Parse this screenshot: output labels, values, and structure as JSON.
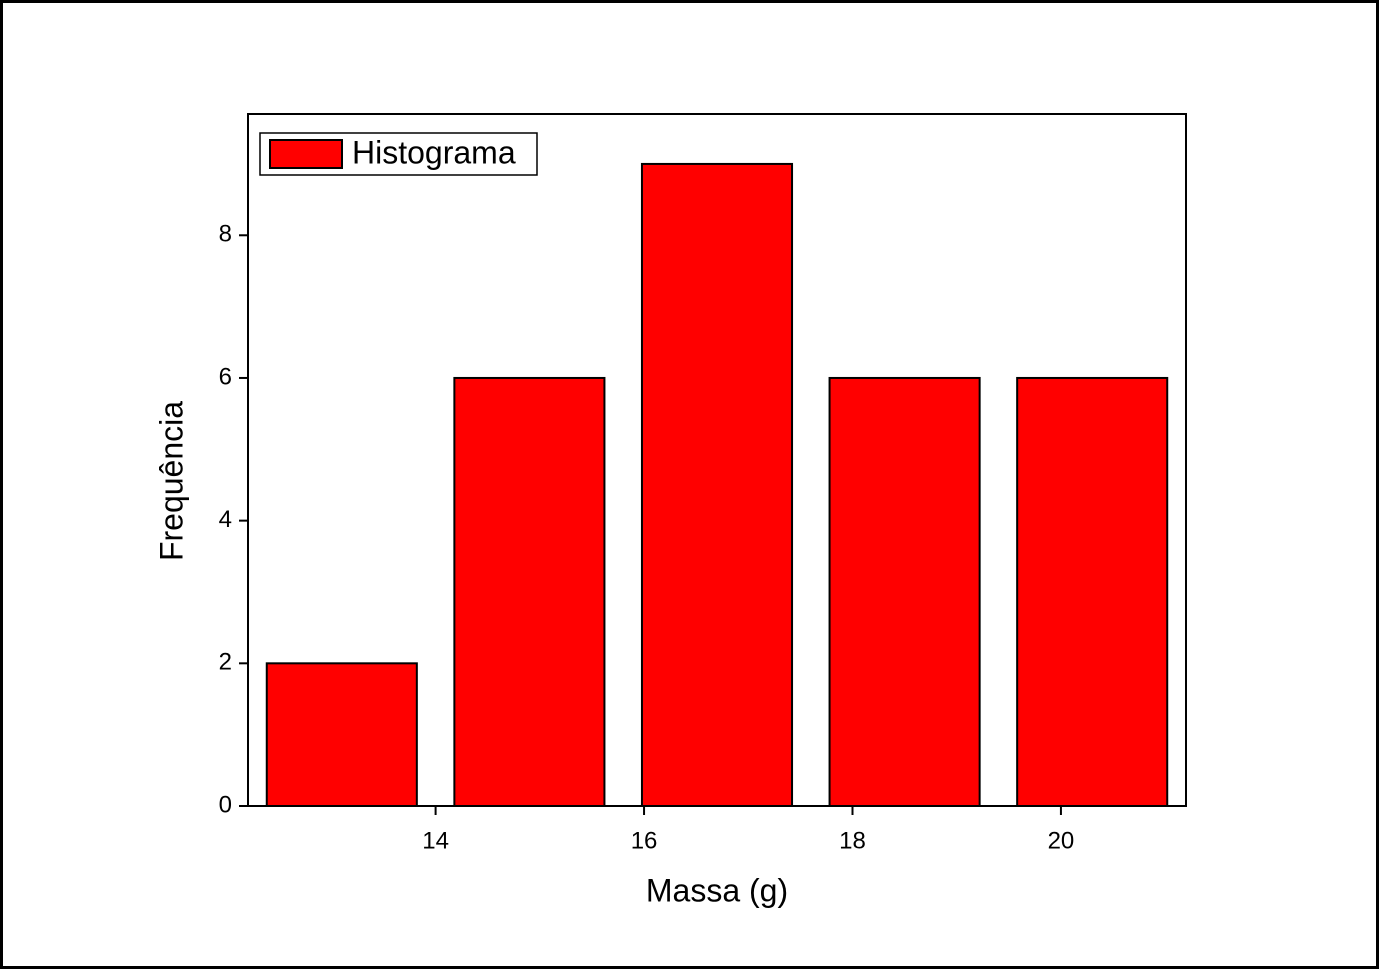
{
  "chart_data": {
    "type": "histogram",
    "x_label": "Massa (g)",
    "y_label": "Frequência",
    "bins": [
      12.2,
      14.0,
      15.8,
      17.6,
      19.4,
      21.2
    ],
    "series": [
      {
        "name": "Histograma",
        "color": "#ff0000",
        "values": [
          2,
          6,
          9,
          6,
          6
        ]
      }
    ],
    "xlim": [
      12.2,
      21.2
    ],
    "xticks": [
      14,
      16,
      18,
      20
    ],
    "ylim": [
      0,
      9.7
    ],
    "yticks": [
      0,
      2,
      4,
      6,
      8
    ],
    "legend": "top-left",
    "grid": false
  }
}
